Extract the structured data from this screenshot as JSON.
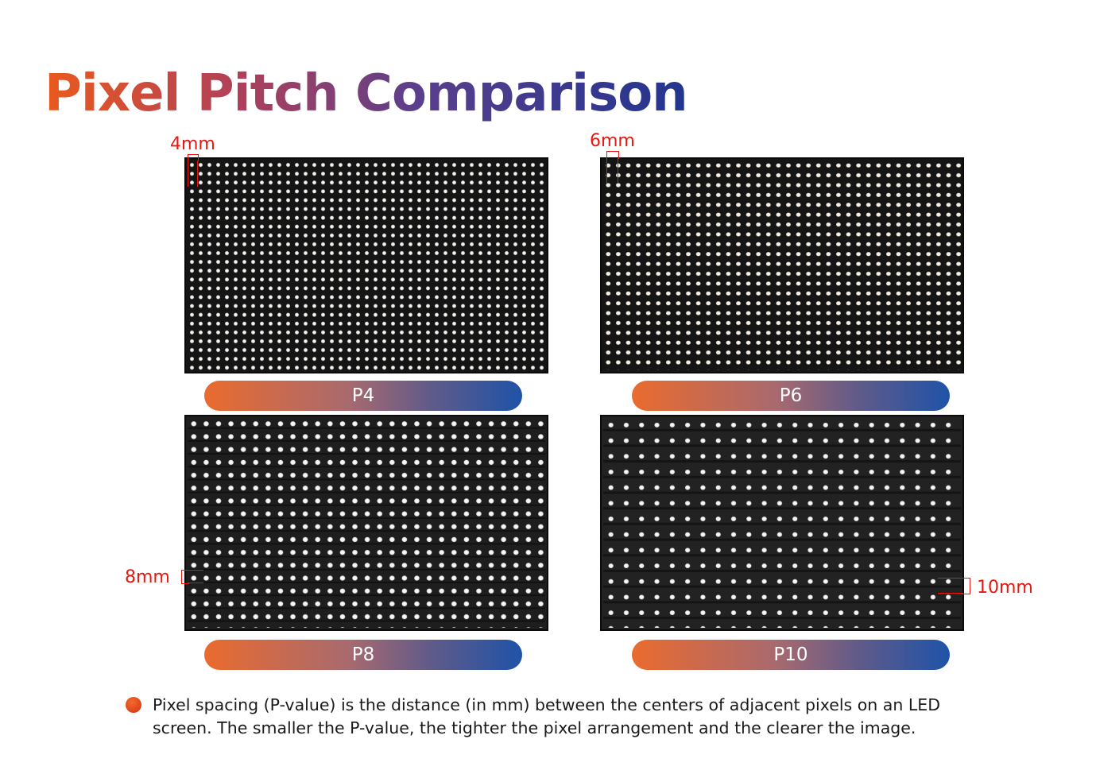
{
  "title": "Pixel Pitch Comparison",
  "panels": [
    {
      "label": "P4",
      "pitch_label": "4mm"
    },
    {
      "label": "P6",
      "pitch_label": "6mm"
    },
    {
      "label": "P8",
      "pitch_label": "8mm"
    },
    {
      "label": "P10",
      "pitch_label": "10mm"
    }
  ],
  "note": "Pixel spacing (P-value) is the distance (in mm) between the centers of adjacent pixels on an LED screen. The smaller the P-value, the tighter the pixel arrangement and the clearer the image.",
  "colors": {
    "title_gradient_start": "#ea5a1e",
    "title_gradient_end": "#22358e",
    "pill_gradient_start": "#ea6b2e",
    "pill_gradient_end": "#1f53a8",
    "marker_red": "#e8170f"
  }
}
